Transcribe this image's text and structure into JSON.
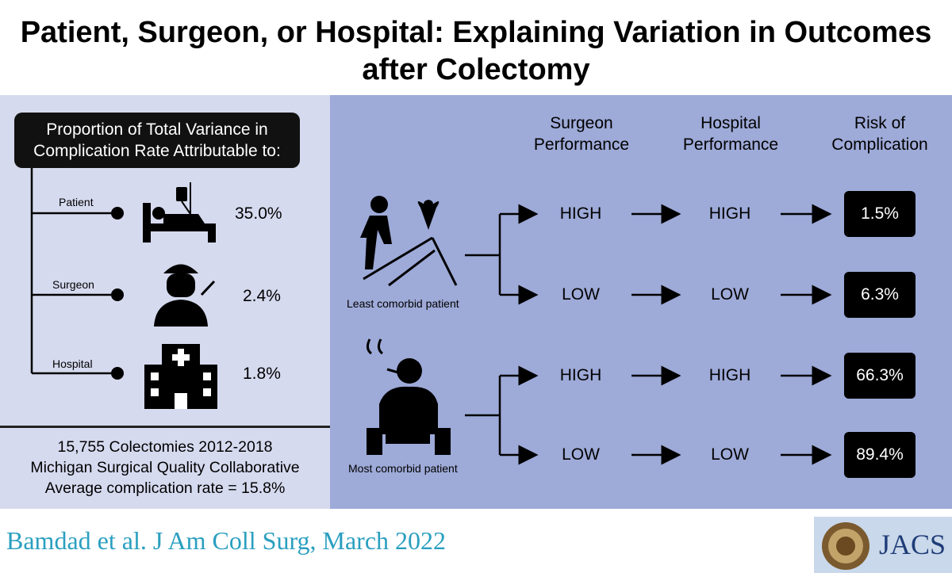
{
  "title": "Patient, Surgeon, or Hospital: Explaining Variation in Outcomes after Colectomy",
  "variance_box": {
    "line1": "Proportion of Total Variance in",
    "line2": "Complication Rate Attributable to:"
  },
  "sources": [
    {
      "label": "Patient",
      "value": "35.0%",
      "icon": "hospital-bed-patient-icon"
    },
    {
      "label": "Surgeon",
      "value": "2.4%",
      "icon": "surgeon-icon"
    },
    {
      "label": "Hospital",
      "value": "1.8%",
      "icon": "hospital-building-icon"
    }
  ],
  "stats": {
    "line1": "15,755 Colectomies 2012-2018",
    "line2": "Michigan Surgical Quality Collaborative",
    "line3": "Average complication rate = 15.8%"
  },
  "headers": {
    "surgeon_1": "Surgeon",
    "surgeon_2": "Performance",
    "hospital_1": "Hospital",
    "hospital_2": "Performance",
    "risk_1": "Risk of",
    "risk_2": "Complication"
  },
  "patients": [
    {
      "caption": "Least comorbid patient",
      "icon": "hiker-heart-icon"
    },
    {
      "caption": "Most comorbid patient",
      "icon": "smoker-icon"
    }
  ],
  "rows": [
    {
      "surgeon": "HIGH",
      "hospital": "HIGH",
      "risk": "1.5%"
    },
    {
      "surgeon": "LOW",
      "hospital": "LOW",
      "risk": "6.3%"
    },
    {
      "surgeon": "HIGH",
      "hospital": "HIGH",
      "risk": "66.3%"
    },
    {
      "surgeon": "LOW",
      "hospital": "LOW",
      "risk": "89.4%"
    }
  ],
  "citation": "Bamdad et al. J Am Coll Surg, March 2022",
  "journal_logo": "JACS",
  "colors": {
    "left_panel": "#d6daef",
    "right_panel": "#9eaad8",
    "citation": "#2a9fc0",
    "jacs": "#1f3c78"
  }
}
